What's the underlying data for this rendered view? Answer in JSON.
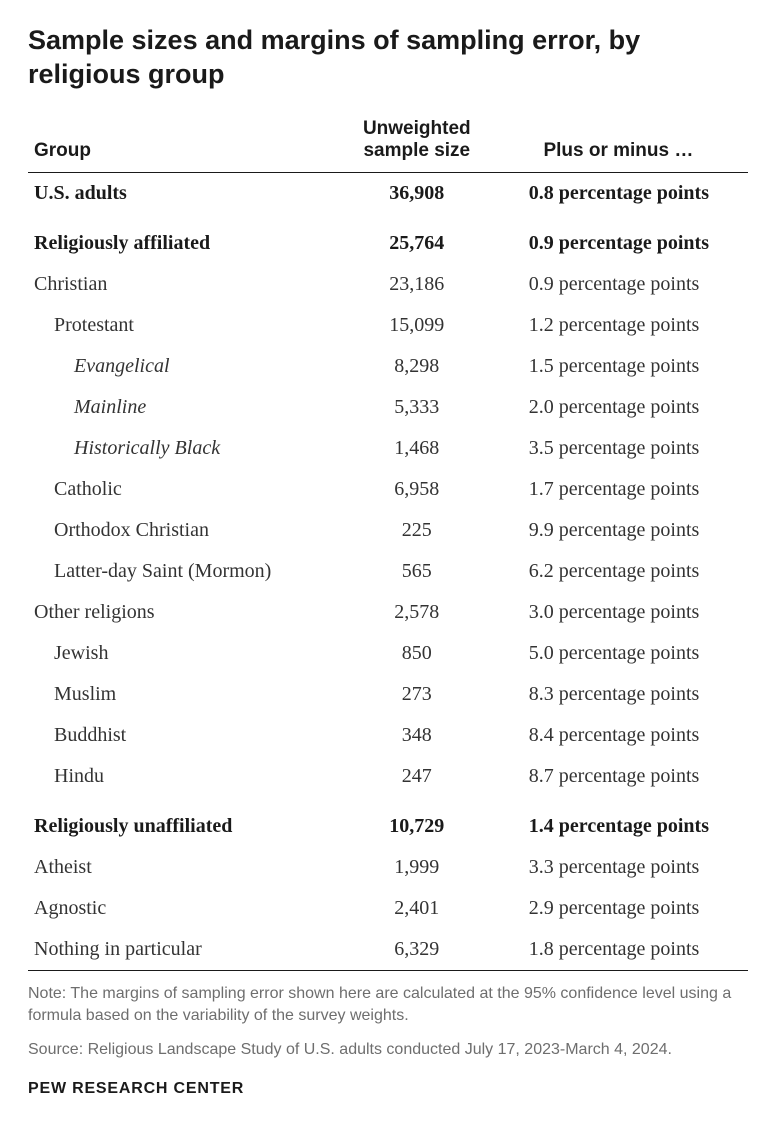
{
  "title": "Sample sizes and margins of sampling error, by religious group",
  "columns": {
    "group": "Group",
    "sample": "Unweighted sample size",
    "moe": "Plus or minus …"
  },
  "rows": [
    {
      "label": "U.S. adults",
      "sample": "36,908",
      "moe": "0.8 percentage points",
      "bold": true,
      "indent": 0
    },
    {
      "label": "Religiously affiliated",
      "sample": "25,764",
      "moe": "0.9 percentage points",
      "bold": true,
      "indent": 0,
      "spacer": true
    },
    {
      "label": "Christian",
      "sample": "23,186",
      "moe": "0.9 percentage points",
      "indent": 1
    },
    {
      "label": "Protestant",
      "sample": "15,099",
      "moe": "1.2 percentage points",
      "indent": 2
    },
    {
      "label": "Evangelical",
      "sample": "8,298",
      "moe": "1.5 percentage points",
      "indent": 3
    },
    {
      "label": "Mainline",
      "sample": "5,333",
      "moe": "2.0 percentage points",
      "indent": 3
    },
    {
      "label": "Historically Black",
      "sample": "1,468",
      "moe": "3.5 percentage points",
      "indent": 3
    },
    {
      "label": "Catholic",
      "sample": "6,958",
      "moe": "1.7 percentage points",
      "indent": 2
    },
    {
      "label": "Orthodox Christian",
      "sample": "225",
      "moe": "9.9 percentage points",
      "indent": 2
    },
    {
      "label": "Latter-day Saint (Mormon)",
      "sample": "565",
      "moe": "6.2 percentage points",
      "indent": 2
    },
    {
      "label": "Other religions",
      "sample": "2,578",
      "moe": "3.0 percentage points",
      "indent": 1
    },
    {
      "label": "Jewish",
      "sample": "850",
      "moe": "5.0 percentage points",
      "indent": 2
    },
    {
      "label": "Muslim",
      "sample": "273",
      "moe": "8.3 percentage points",
      "indent": 2
    },
    {
      "label": "Buddhist",
      "sample": "348",
      "moe": "8.4 percentage points",
      "indent": 2
    },
    {
      "label": "Hindu",
      "sample": "247",
      "moe": "8.7 percentage points",
      "indent": 2
    },
    {
      "label": "Religiously unaffiliated",
      "sample": "10,729",
      "moe": "1.4 percentage points",
      "bold": true,
      "indent": 0,
      "spacer": true
    },
    {
      "label": "Atheist",
      "sample": "1,999",
      "moe": "3.3 percentage points",
      "indent": 1
    },
    {
      "label": "Agnostic",
      "sample": "2,401",
      "moe": "2.9 percentage points",
      "indent": 1
    },
    {
      "label": "Nothing in particular",
      "sample": "6,329",
      "moe": "1.8 percentage points",
      "indent": 1,
      "divider": true
    }
  ],
  "note": "Note: The margins of sampling error shown here are calculated at the 95% confidence level using a formula based on the variability of the survey weights.",
  "source": "Source: Religious Landscape Study of U.S. adults conducted July 17, 2023-March 4, 2024.",
  "attribution": "PEW RESEARCH CENTER"
}
